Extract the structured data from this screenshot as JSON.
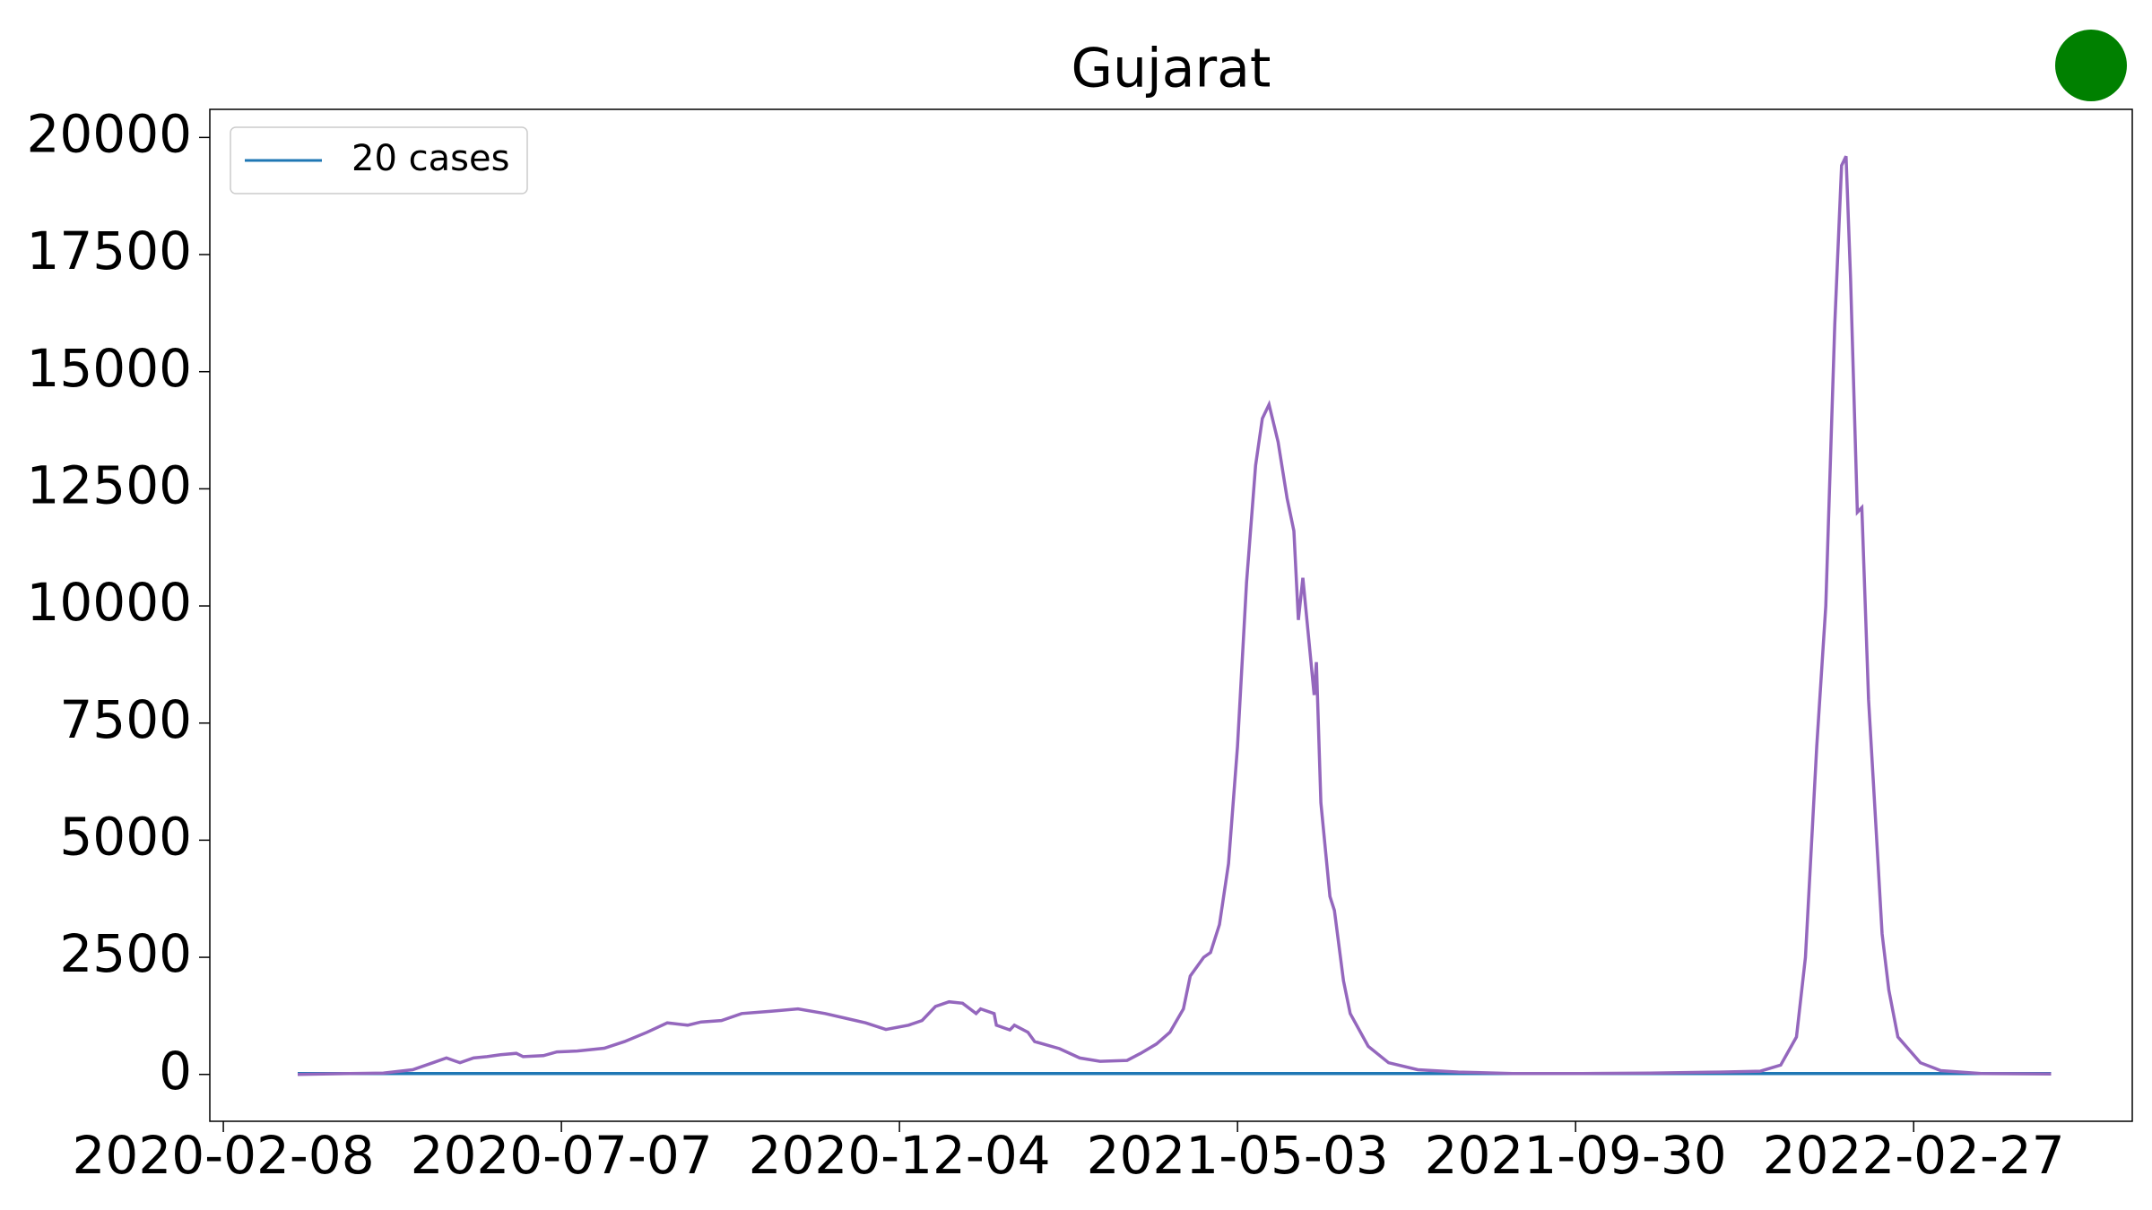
{
  "chart_data": {
    "type": "line",
    "title": "Gujarat",
    "series": [
      {
        "name": "20 cases",
        "color": "#1f77b4",
        "x": [
          "2020-03-12",
          "2022-04-29"
        ],
        "values": [
          20,
          20
        ]
      },
      {
        "color": "#9467bd",
        "x": [
          "2020-03-12",
          "2020-04-19",
          "2020-05-02",
          "2020-05-11",
          "2020-05-17",
          "2020-05-23",
          "2020-05-29",
          "2020-06-04",
          "2020-06-10",
          "2020-06-17",
          "2020-06-20",
          "2020-06-29",
          "2020-07-05",
          "2020-07-14",
          "2020-07-26",
          "2020-08-04",
          "2020-08-14",
          "2020-08-23",
          "2020-09-01",
          "2020-09-07",
          "2020-09-16",
          "2020-09-25",
          "2020-10-08",
          "2020-10-20",
          "2020-11-01",
          "2020-11-10",
          "2020-11-19",
          "2020-11-28",
          "2020-12-08",
          "2020-12-14",
          "2020-12-20",
          "2020-12-26",
          "2021-01-01",
          "2021-01-07",
          "2021-01-09",
          "2021-01-15",
          "2021-01-16",
          "2021-01-22",
          "2021-01-24",
          "2021-01-30",
          "2021-02-02",
          "2021-02-13",
          "2021-02-22",
          "2021-03-03",
          "2021-03-15",
          "2021-03-21",
          "2021-03-28",
          "2021-04-03",
          "2021-04-09",
          "2021-04-12",
          "2021-04-18",
          "2021-04-21",
          "2021-04-25",
          "2021-04-29",
          "2021-05-03",
          "2021-05-07",
          "2021-05-11",
          "2021-05-14",
          "2021-05-17",
          "2021-05-21",
          "2021-05-25",
          "2021-05-28",
          "2021-05-30",
          "2021-06-01",
          "2021-06-06",
          "2021-06-07",
          "2021-06-09",
          "2021-06-13",
          "2021-06-15",
          "2021-06-19",
          "2021-06-22",
          "2021-06-30",
          "2021-07-09",
          "2021-07-22",
          "2021-08-09",
          "2021-09-02",
          "2021-10-03",
          "2021-11-02",
          "2021-12-03",
          "2021-12-21",
          "2021-12-30",
          "2022-01-06",
          "2022-01-10",
          "2022-01-15",
          "2022-01-19",
          "2022-01-23",
          "2022-01-26",
          "2022-01-28",
          "2022-01-30",
          "2022-02-02",
          "2022-02-04",
          "2022-02-07",
          "2022-02-10",
          "2022-02-13",
          "2022-02-16",
          "2022-02-20",
          "2022-03-02",
          "2022-03-11",
          "2022-03-29",
          "2022-04-29"
        ],
        "values": [
          0,
          30,
          100,
          250,
          350,
          250,
          350,
          380,
          420,
          450,
          380,
          400,
          480,
          500,
          560,
          700,
          900,
          1100,
          1050,
          1120,
          1150,
          1300,
          1350,
          1400,
          1300,
          1200,
          1100,
          960,
          1050,
          1150,
          1450,
          1550,
          1520,
          1300,
          1400,
          1300,
          1050,
          950,
          1050,
          900,
          700,
          550,
          350,
          280,
          300,
          450,
          650,
          900,
          1400,
          2100,
          2500,
          2600,
          3200,
          4500,
          7000,
          10500,
          13000,
          14000,
          14300,
          13500,
          12300,
          11600,
          9700,
          10600,
          8100,
          8800,
          5800,
          3800,
          3500,
          2000,
          1300,
          600,
          250,
          100,
          50,
          20,
          20,
          30,
          50,
          70,
          200,
          800,
          2500,
          7000,
          10000,
          16000,
          19400,
          19600,
          17000,
          12000,
          12100,
          8000,
          5500,
          3000,
          1800,
          800,
          250,
          80,
          20,
          10
        ]
      }
    ],
    "xlim": [
      "2020-02-02",
      "2022-06-04"
    ],
    "xticks": [
      "2020-02-08",
      "2020-07-07",
      "2020-12-04",
      "2021-05-03",
      "2021-09-30",
      "2022-02-27"
    ],
    "ylim": [
      -1000,
      20600
    ],
    "yticks": [
      0,
      2500,
      5000,
      7500,
      10000,
      12500,
      15000,
      17500,
      20000
    ],
    "legend": "upper-left"
  }
}
